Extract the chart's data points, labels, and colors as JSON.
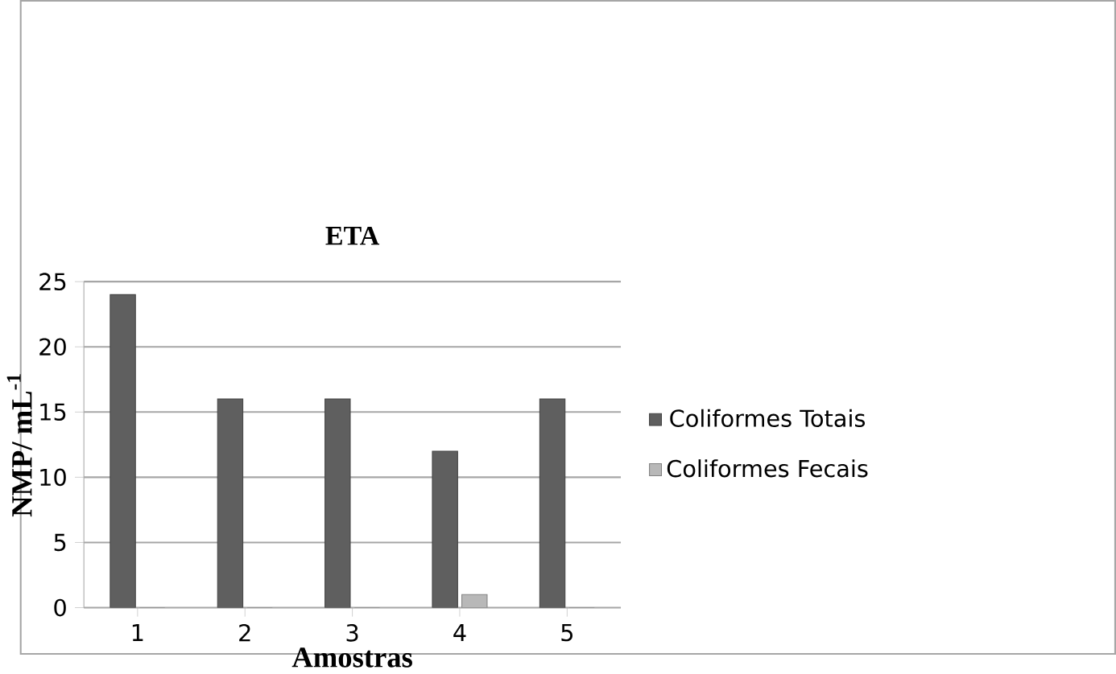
{
  "chart_data": {
    "type": "bar",
    "title": "ETA",
    "xlabel": "Amostras",
    "ylabel": "NMP/ mL$^{-1}$",
    "categories": [
      "1",
      "2",
      "3",
      "4",
      "5"
    ],
    "series": [
      {
        "name": "Coliformes Totais",
        "color": "#5f5f5f",
        "values": [
          24,
          16,
          16,
          12,
          16
        ]
      },
      {
        "name": "Coliformes Fecais",
        "color": "#b8b8b8",
        "values": [
          0,
          0,
          0,
          1,
          0
        ]
      }
    ],
    "ylim": [
      0,
      25
    ],
    "yticks": [
      0,
      5,
      10,
      15,
      20,
      25
    ],
    "grid": "y",
    "legend": "right"
  }
}
